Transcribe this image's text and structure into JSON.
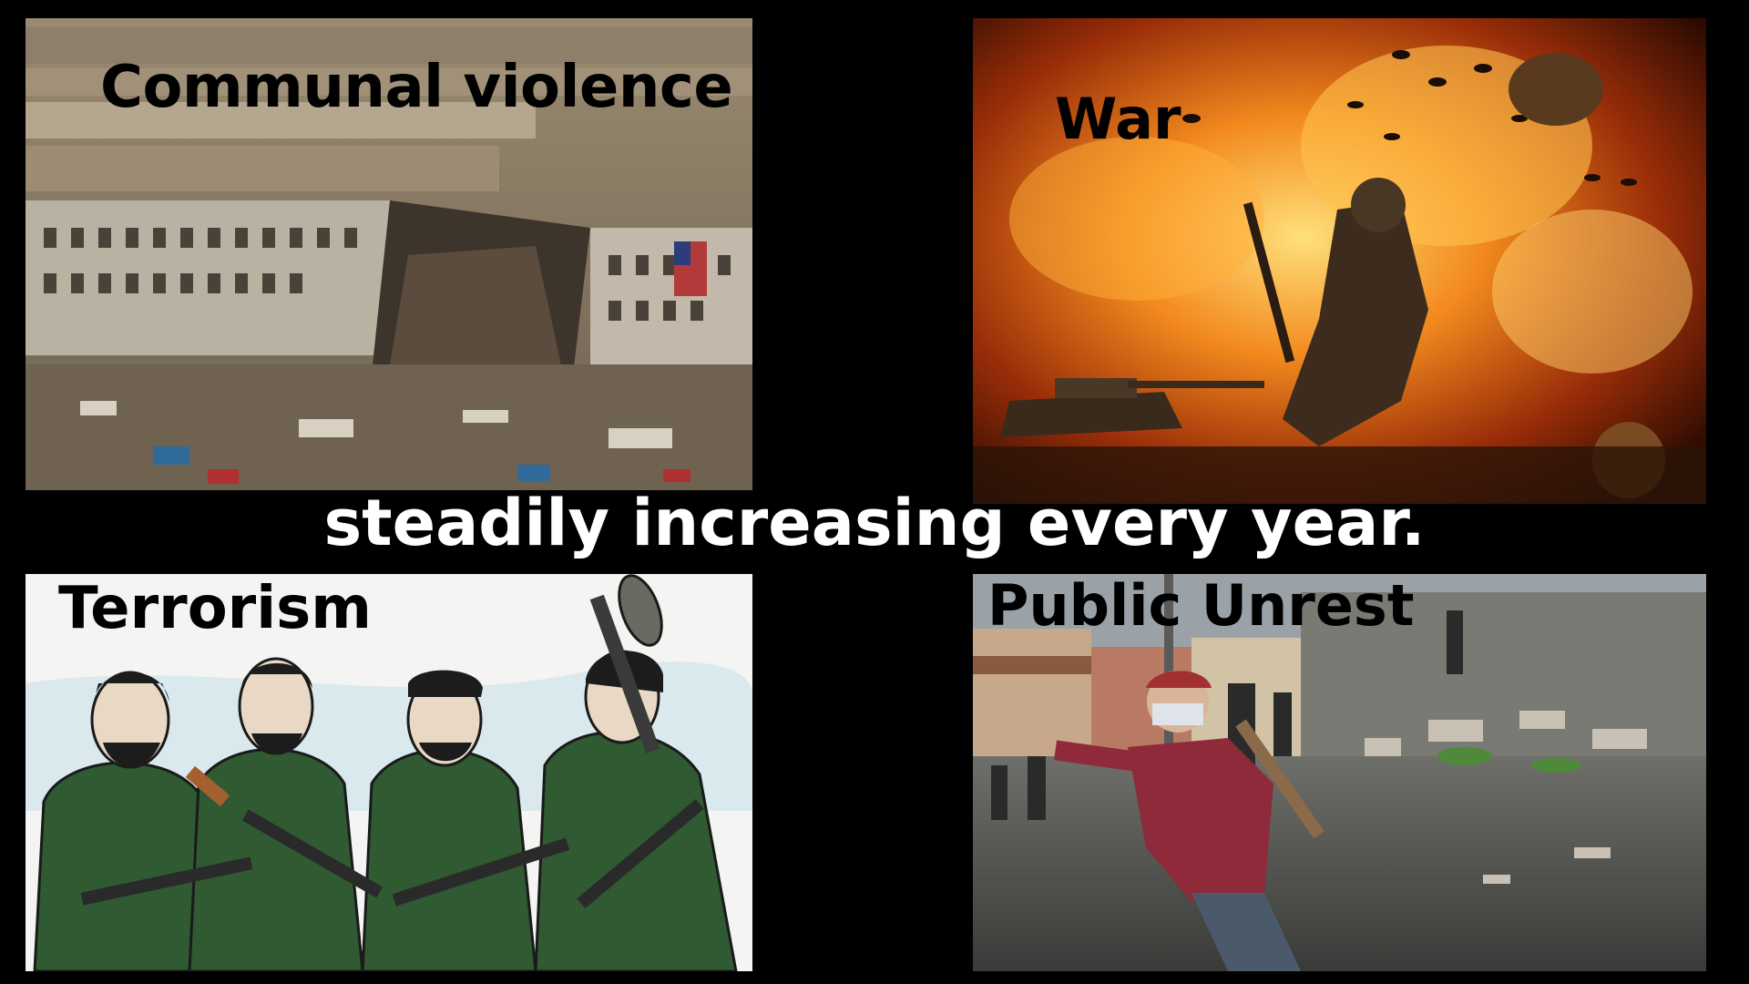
{
  "caption": "steadily increasing every year.",
  "panels": [
    {
      "label": "Communal violence",
      "scene": "damaged-building-photo"
    },
    {
      "label": "War",
      "scene": "battlefield-explosion-illustration"
    },
    {
      "label": "Terrorism",
      "scene": "armed-men-sketch"
    },
    {
      "label": "Public Unrest",
      "scene": "street-protest-photo"
    }
  ],
  "colors": {
    "background": "#000000",
    "caption": "#ffffff",
    "label": "#000000"
  }
}
